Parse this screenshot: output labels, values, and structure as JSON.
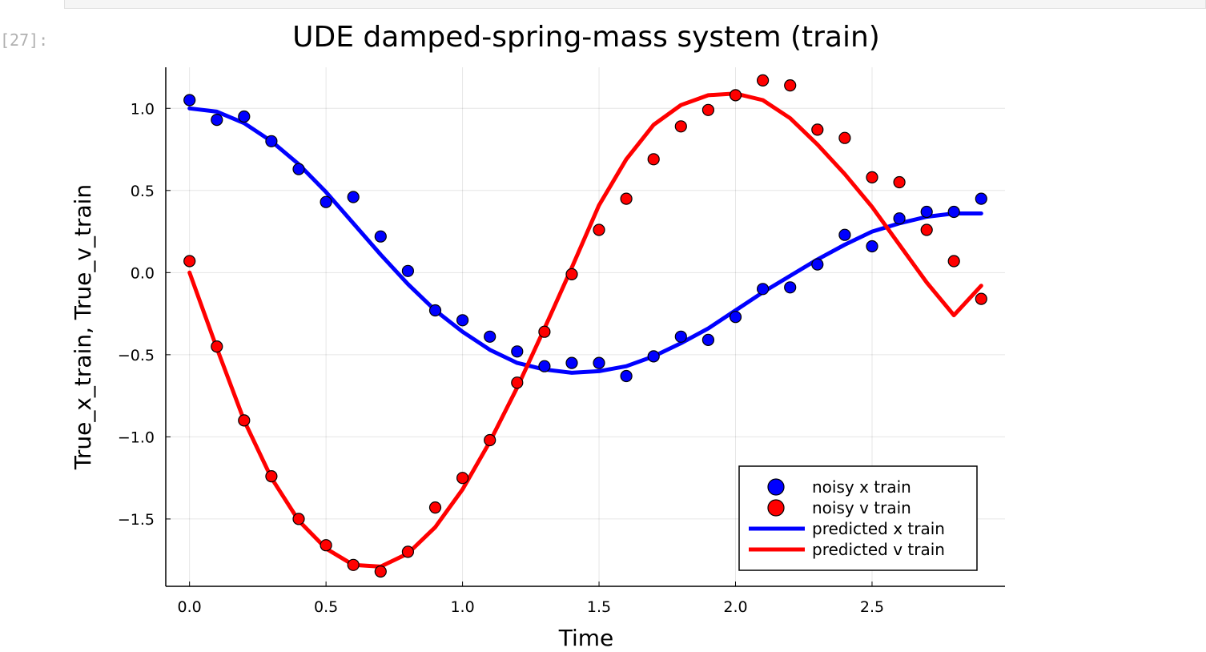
{
  "notebook": {
    "prompt": "[27]:"
  },
  "chart_data": {
    "type": "line",
    "title": "UDE damped-spring-mass system (train)",
    "xlabel": "Time",
    "ylabel": "True_x_train, True_v_train",
    "xlim": [
      -0.087,
      2.987
    ],
    "ylim": [
      -1.91,
      1.25
    ],
    "xticks": [
      0.0,
      0.5,
      1.0,
      1.5,
      2.0,
      2.5
    ],
    "xtick_labels": [
      "0.0",
      "0.5",
      "1.0",
      "1.5",
      "2.0",
      "2.5"
    ],
    "yticks": [
      1.0,
      0.5,
      0.0,
      -0.5,
      -1.0,
      -1.5
    ],
    "ytick_labels": [
      "1.0",
      "0.5",
      "0.0",
      "−0.5",
      "−1.0",
      "−1.5"
    ],
    "grid": true,
    "legend_position": "bottom-right",
    "x": [
      0.0,
      0.1,
      0.2,
      0.3,
      0.4,
      0.5,
      0.6,
      0.7,
      0.8,
      0.9,
      1.0,
      1.1,
      1.2,
      1.3,
      1.4,
      1.5,
      1.6,
      1.7,
      1.8,
      1.9,
      2.0,
      2.1,
      2.2,
      2.3,
      2.4,
      2.5,
      2.6,
      2.7,
      2.8,
      2.9
    ],
    "series": [
      {
        "name": "noisy x train",
        "kind": "scatter",
        "color": "#0000ff",
        "values": [
          1.05,
          0.93,
          0.95,
          0.8,
          0.63,
          0.43,
          0.46,
          0.22,
          0.01,
          -0.23,
          -0.29,
          -0.39,
          -0.48,
          -0.57,
          -0.55,
          -0.55,
          -0.63,
          -0.51,
          -0.39,
          -0.41,
          -0.27,
          -0.1,
          -0.09,
          0.05,
          0.23,
          0.16,
          0.33,
          0.37,
          0.37,
          0.45
        ]
      },
      {
        "name": "noisy v train",
        "kind": "scatter",
        "color": "#ff0000",
        "values": [
          0.07,
          -0.45,
          -0.9,
          -1.24,
          -1.5,
          -1.66,
          -1.78,
          -1.82,
          -1.7,
          -1.43,
          -1.25,
          -1.02,
          -0.67,
          -0.36,
          -0.01,
          0.26,
          0.45,
          0.69,
          0.89,
          0.99,
          1.08,
          1.17,
          1.14,
          0.87,
          0.82,
          0.58,
          0.55,
          0.26,
          0.07,
          -0.16
        ]
      },
      {
        "name": "predicted x train",
        "kind": "line",
        "color": "#0000ff",
        "values": [
          1.0,
          0.98,
          0.91,
          0.8,
          0.66,
          0.49,
          0.3,
          0.11,
          -0.07,
          -0.23,
          -0.36,
          -0.47,
          -0.55,
          -0.59,
          -0.61,
          -0.6,
          -0.57,
          -0.51,
          -0.43,
          -0.34,
          -0.23,
          -0.12,
          -0.02,
          0.08,
          0.17,
          0.25,
          0.3,
          0.34,
          0.36,
          0.36
        ]
      },
      {
        "name": "predicted v train",
        "kind": "line",
        "color": "#ff0000",
        "values": [
          0.0,
          -0.46,
          -0.9,
          -1.25,
          -1.51,
          -1.68,
          -1.78,
          -1.79,
          -1.71,
          -1.55,
          -1.32,
          -1.03,
          -0.7,
          -0.34,
          0.03,
          0.41,
          0.69,
          0.9,
          1.02,
          1.08,
          1.09,
          1.05,
          0.94,
          0.78,
          0.6,
          0.4,
          0.17,
          -0.06,
          -0.26,
          -0.08
        ]
      }
    ]
  }
}
